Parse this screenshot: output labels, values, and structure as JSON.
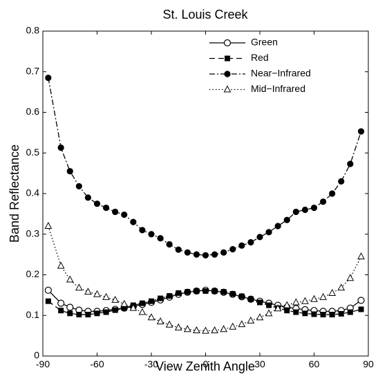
{
  "chart_data": {
    "type": "line",
    "title": "St. Louis Creek",
    "x_label": "View Zenith Angle",
    "y_label": "Band Reflectance",
    "x": [
      -87,
      -80,
      -75,
      -70,
      -65,
      -60,
      -55,
      -50,
      -45,
      -40,
      -35,
      -30,
      -25,
      -20,
      -15,
      -10,
      -5,
      0,
      5,
      10,
      15,
      20,
      25,
      30,
      35,
      40,
      45,
      50,
      55,
      60,
      65,
      70,
      75,
      80,
      86
    ],
    "series": [
      {
        "name": "Green",
        "color": "#000000",
        "dash": "solid",
        "marker": "open-circle",
        "values": [
          0.162,
          0.13,
          0.12,
          0.113,
          0.11,
          0.11,
          0.112,
          0.115,
          0.118,
          0.122,
          0.127,
          0.132,
          0.138,
          0.145,
          0.152,
          0.157,
          0.16,
          0.162,
          0.16,
          0.157,
          0.152,
          0.146,
          0.14,
          0.135,
          0.13,
          0.125,
          0.12,
          0.117,
          0.114,
          0.112,
          0.11,
          0.11,
          0.112,
          0.118,
          0.137
        ]
      },
      {
        "name": "Red",
        "color": "#000000",
        "dash": "dashed",
        "marker": "filled-square",
        "values": [
          0.135,
          0.112,
          0.105,
          0.102,
          0.102,
          0.105,
          0.108,
          0.113,
          0.118,
          0.125,
          0.13,
          0.135,
          0.142,
          0.148,
          0.155,
          0.158,
          0.16,
          0.16,
          0.16,
          0.158,
          0.153,
          0.147,
          0.14,
          0.132,
          0.125,
          0.118,
          0.112,
          0.108,
          0.105,
          0.103,
          0.102,
          0.102,
          0.104,
          0.108,
          0.115
        ]
      },
      {
        "name": "Near−Infrared",
        "color": "#000000",
        "dash": "dashdot",
        "marker": "filled-circle",
        "values": [
          0.685,
          0.513,
          0.455,
          0.418,
          0.39,
          0.375,
          0.365,
          0.355,
          0.348,
          0.33,
          0.31,
          0.3,
          0.29,
          0.275,
          0.262,
          0.255,
          0.25,
          0.248,
          0.25,
          0.255,
          0.263,
          0.272,
          0.28,
          0.293,
          0.305,
          0.32,
          0.335,
          0.355,
          0.36,
          0.365,
          0.38,
          0.4,
          0.43,
          0.473,
          0.553
        ]
      },
      {
        "name": "Mid−Infrared",
        "color": "#000000",
        "dash": "dotted",
        "marker": "open-triangle",
        "values": [
          0.32,
          0.222,
          0.188,
          0.168,
          0.158,
          0.152,
          0.145,
          0.138,
          0.128,
          0.118,
          0.108,
          0.095,
          0.085,
          0.077,
          0.07,
          0.066,
          0.063,
          0.062,
          0.063,
          0.066,
          0.072,
          0.078,
          0.087,
          0.095,
          0.105,
          0.117,
          0.125,
          0.132,
          0.135,
          0.14,
          0.145,
          0.155,
          0.168,
          0.192,
          0.245
        ]
      }
    ],
    "xlim": [
      -90,
      90
    ],
    "xticks": [
      -90,
      -60,
      -30,
      0,
      30,
      60,
      90
    ],
    "ylim": [
      0,
      0.8
    ],
    "yticks": [
      0,
      0.1,
      0.2,
      0.3,
      0.4,
      0.5,
      0.6,
      0.7,
      0.8
    ],
    "grid": false,
    "legend": "upper right"
  }
}
